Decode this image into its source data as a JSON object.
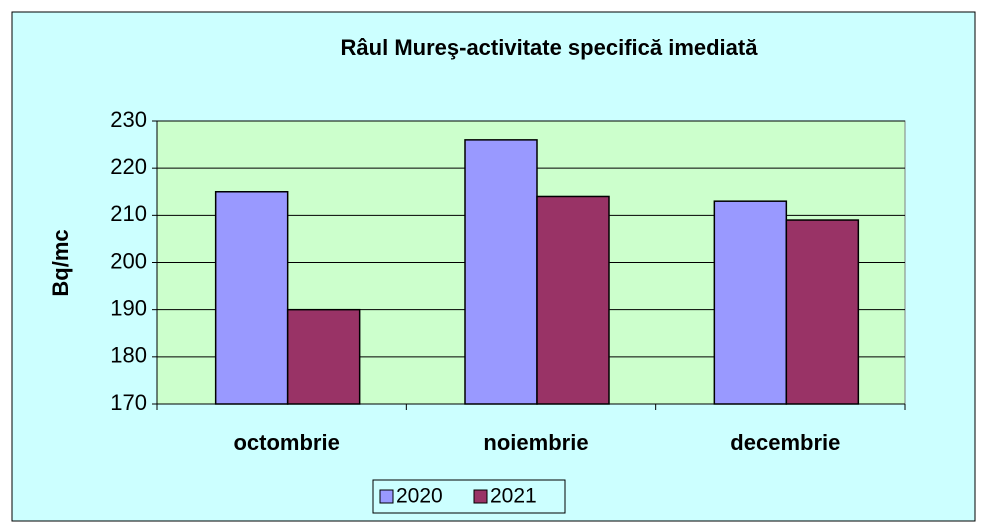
{
  "chart_data": {
    "type": "bar",
    "title": "Râul Mureş-activitate specifică imediată",
    "y_label": "Bq/mc",
    "categories": [
      "octombrie",
      "noiembrie",
      "decembrie"
    ],
    "series": [
      {
        "name": "2020",
        "color": "#9999ff",
        "values": [
          215,
          226,
          213
        ]
      },
      {
        "name": "2021",
        "color": "#993366",
        "values": [
          190,
          214,
          209
        ]
      }
    ],
    "ylim": [
      170,
      230
    ],
    "yticks": [
      170,
      180,
      190,
      200,
      210,
      220,
      230
    ],
    "grid": true,
    "legend": "bottom"
  }
}
